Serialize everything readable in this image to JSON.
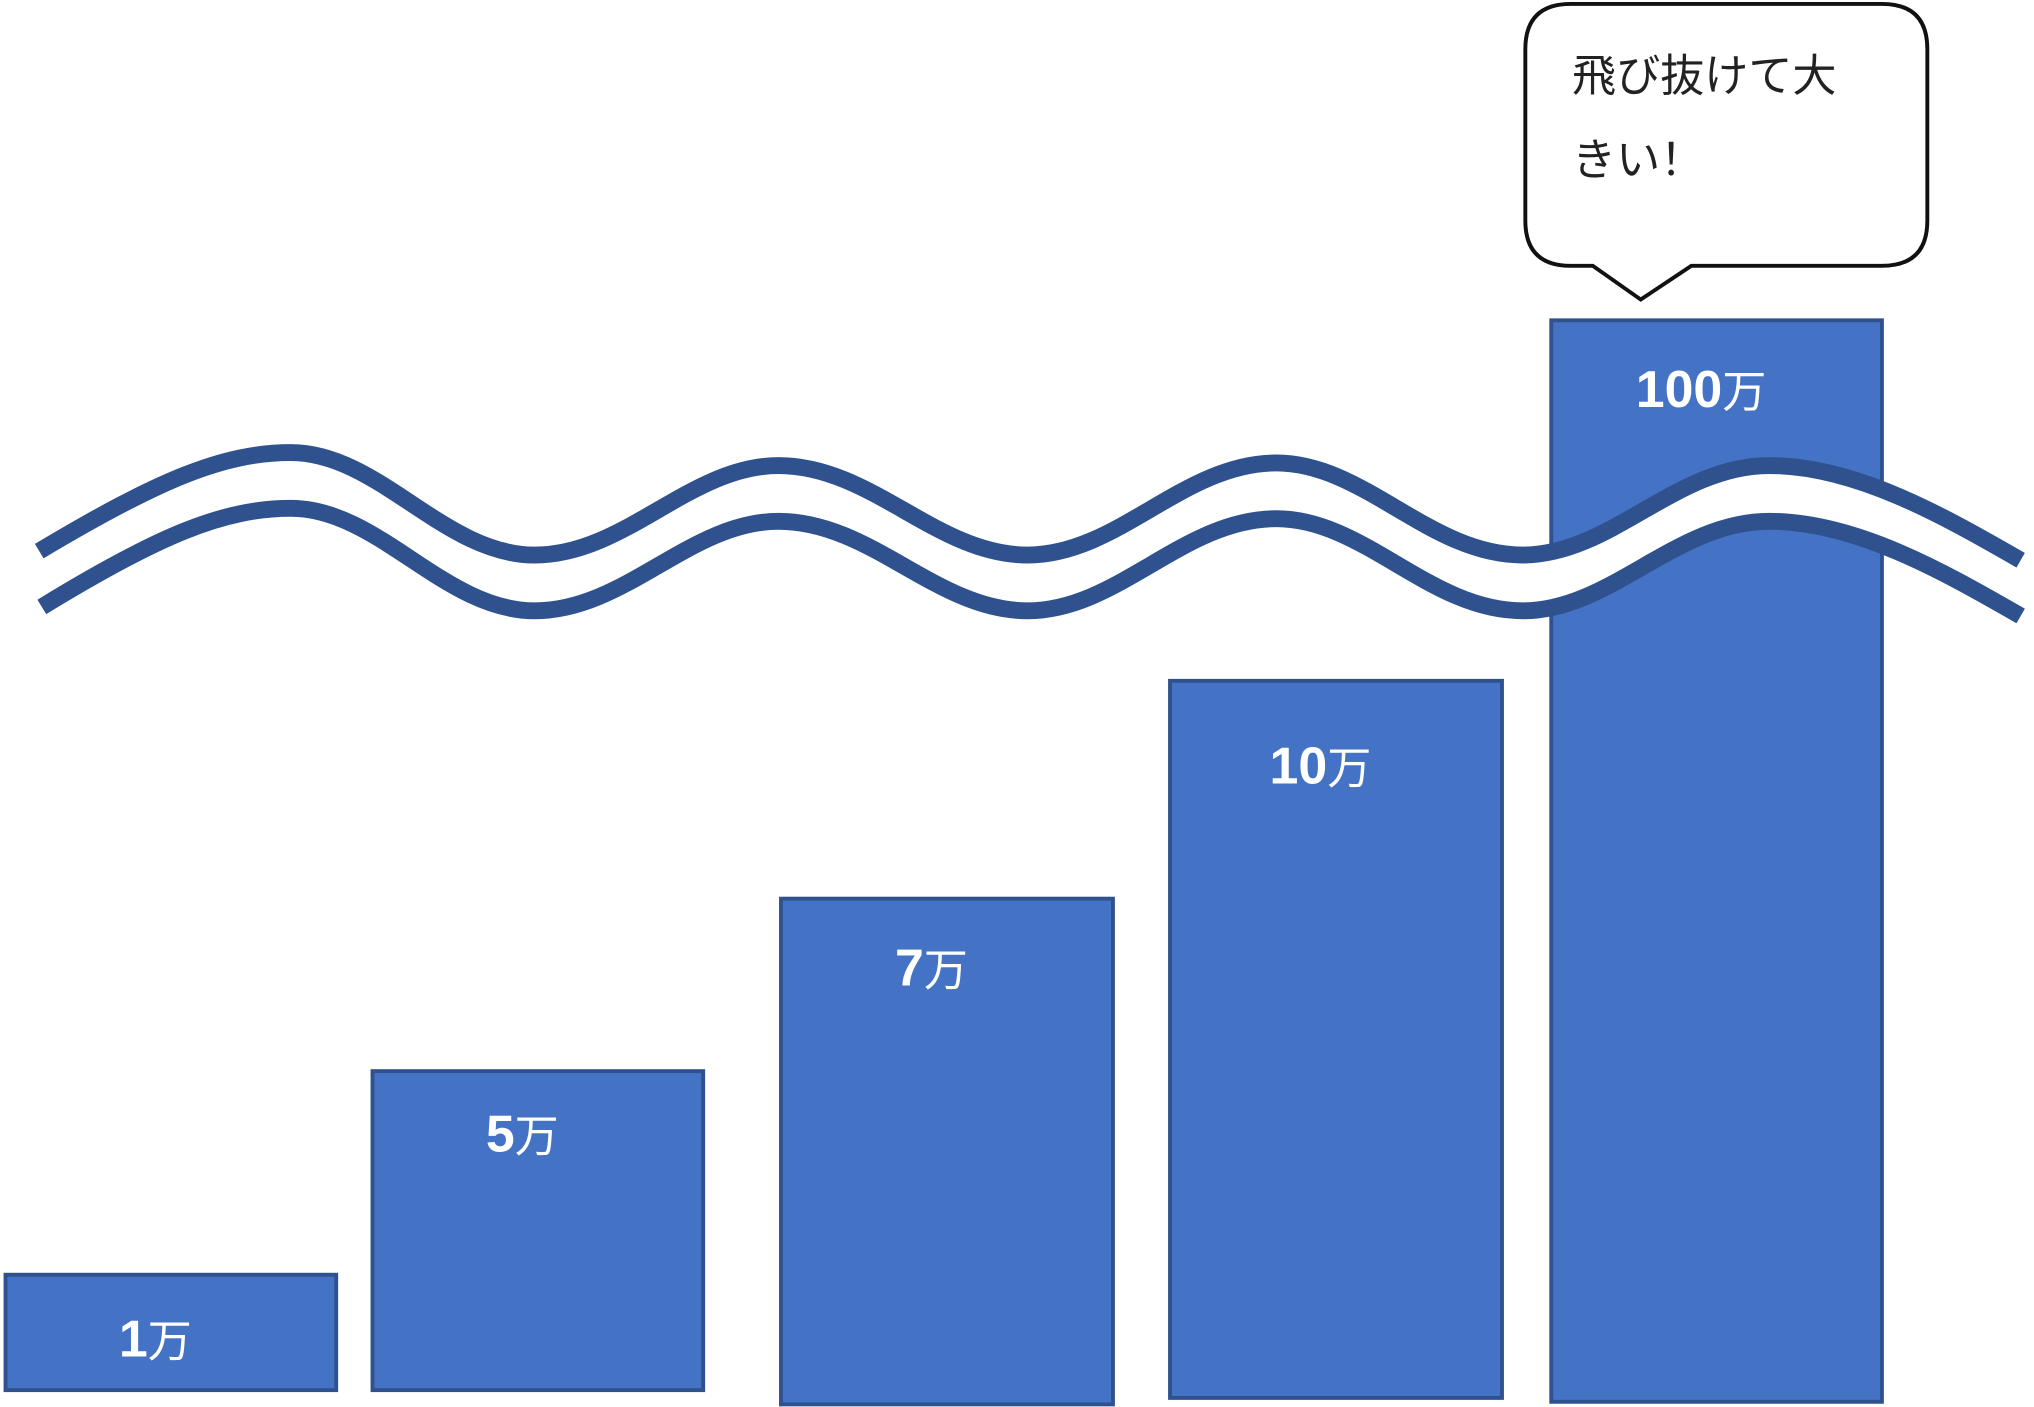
{
  "bars": [
    {
      "number": "1",
      "unit": "万"
    },
    {
      "number": "5",
      "unit": "万"
    },
    {
      "number": "7",
      "unit": "万"
    },
    {
      "number": "10",
      "unit": "万"
    },
    {
      "number": "100",
      "unit": "万"
    }
  ],
  "callout": {
    "lines": [
      "飛び抜けて大",
      "きい！"
    ]
  }
}
